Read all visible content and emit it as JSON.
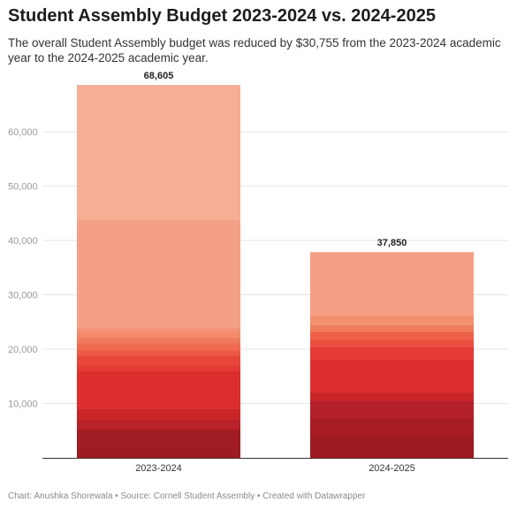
{
  "title": "Student Assembly Budget 2023-2024 vs. 2024-2025",
  "subtitle": "The overall Student Assembly budget was reduced by $30,755 from the 2023-2024 academic year to the 2024-2025 academic year.",
  "footer": "Chart: Anushka Shorewala • Source: Cornell Student Assembly • Created with Datawrapper",
  "chart_data": {
    "type": "bar",
    "stacked": true,
    "categories": [
      "2023-2024",
      "2024-2025"
    ],
    "totals": [
      68605,
      37850
    ],
    "total_labels": [
      "68,605",
      "37,850"
    ],
    "y_ticks": [
      10000,
      20000,
      30000,
      40000,
      50000,
      60000
    ],
    "y_tick_labels": [
      "10,000",
      "20,000",
      "30,000",
      "40,000",
      "50,000",
      "60,000"
    ],
    "ylim": [
      0,
      70000
    ],
    "grid": true,
    "stacks": [
      {
        "category": "2023-2024",
        "segments": [
          {
            "value": 800,
            "color": "#9b1b22"
          },
          {
            "value": 4400,
            "color": "#a01c22"
          },
          {
            "value": 1800,
            "color": "#b82228"
          },
          {
            "value": 2000,
            "color": "#c9262a"
          },
          {
            "value": 7000,
            "color": "#dd2e2e"
          },
          {
            "value": 1000,
            "color": "#e43a34"
          },
          {
            "value": 1800,
            "color": "#e8463a"
          },
          {
            "value": 1000,
            "color": "#ec5a45"
          },
          {
            "value": 1300,
            "color": "#ef6a50"
          },
          {
            "value": 1000,
            "color": "#f07a5c"
          },
          {
            "value": 1200,
            "color": "#f38b6c"
          },
          {
            "value": 700,
            "color": "#f39378"
          },
          {
            "value": 19800,
            "color": "#f3a086"
          },
          {
            "value": 24805,
            "color": "#f6ae94"
          }
        ]
      },
      {
        "category": "2024-2025",
        "segments": [
          {
            "value": 4000,
            "color": "#9e1b21"
          },
          {
            "value": 3300,
            "color": "#a81d24"
          },
          {
            "value": 3200,
            "color": "#b3202a"
          },
          {
            "value": 1500,
            "color": "#c9262a"
          },
          {
            "value": 6000,
            "color": "#dd2e2e"
          },
          {
            "value": 2400,
            "color": "#e43a34"
          },
          {
            "value": 1300,
            "color": "#ea5040"
          },
          {
            "value": 1500,
            "color": "#ee6048"
          },
          {
            "value": 1200,
            "color": "#f07c5e"
          },
          {
            "value": 1800,
            "color": "#f3906f"
          },
          {
            "value": 11650,
            "color": "#f5a084"
          }
        ]
      }
    ]
  }
}
